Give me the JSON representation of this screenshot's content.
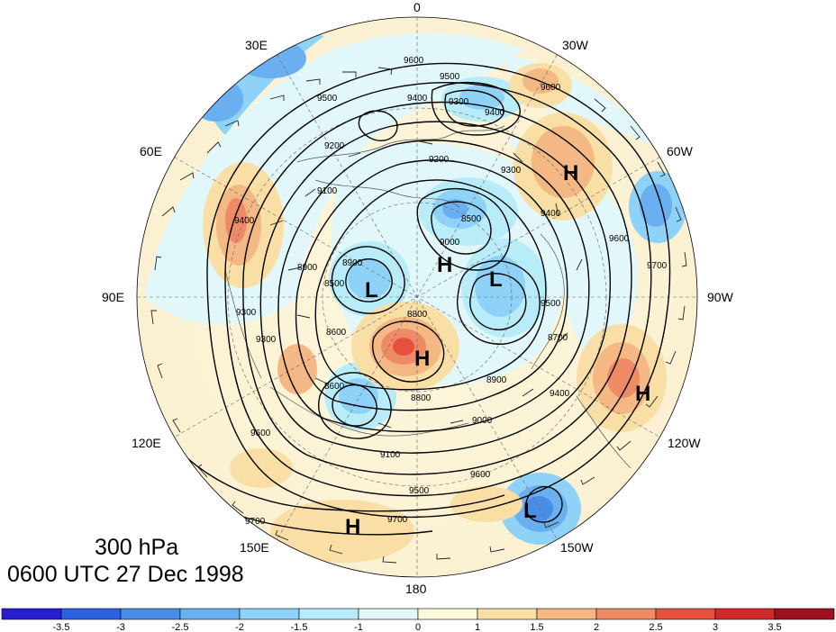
{
  "title": {
    "level": "300 hPa",
    "time": "0600 UTC 27 Dec 1998"
  },
  "longitude_labels": {
    "top": "0",
    "top_left": "30E",
    "top_right": "30W",
    "upper_left": "60E",
    "upper_right": "60W",
    "left": "90E",
    "right": "90W",
    "lower_left": "120E",
    "lower_right": "120W",
    "bottom_left": "150E",
    "bottom_right": "150W",
    "bottom": "180"
  },
  "pressure_systems": [
    {
      "type": "H",
      "label": "H"
    },
    {
      "type": "H",
      "label": "H"
    },
    {
      "type": "L",
      "label": "L"
    },
    {
      "type": "L",
      "label": "L"
    },
    {
      "type": "H",
      "label": "H"
    },
    {
      "type": "H",
      "label": "H"
    },
    {
      "type": "L",
      "label": "L"
    },
    {
      "type": "H",
      "label": "H"
    }
  ],
  "contour_labels": [
    "9600",
    "9500",
    "9400",
    "9300",
    "9400",
    "9600",
    "9200",
    "9300",
    "9500",
    "9400",
    "9400",
    "9300",
    "9100",
    "9200",
    "8900",
    "8900",
    "8500",
    "9000",
    "8800",
    "8600",
    "8500",
    "9600",
    "9700",
    "8600",
    "8700",
    "9400",
    "9500",
    "9100",
    "9500",
    "9600",
    "9700",
    "9700",
    "9600",
    "9300",
    "9000",
    "8800",
    "8900"
  ],
  "colorbar": {
    "ticks": [
      "-3.5",
      "-3",
      "-2.5",
      "-2",
      "-1.5",
      "-1",
      "0",
      "1",
      "1.5",
      "2",
      "2.5",
      "3",
      "3.5"
    ],
    "colors": [
      "#2a1fd0",
      "#2d5fe0",
      "#4a8de8",
      "#6ab0f0",
      "#8fd2f7",
      "#b8ecf9",
      "#e2f7fa",
      "#fdf7dc",
      "#f9dfa5",
      "#f4b884",
      "#ee8b66",
      "#e5503f",
      "#cf2a2e",
      "#a00f1f"
    ]
  }
}
